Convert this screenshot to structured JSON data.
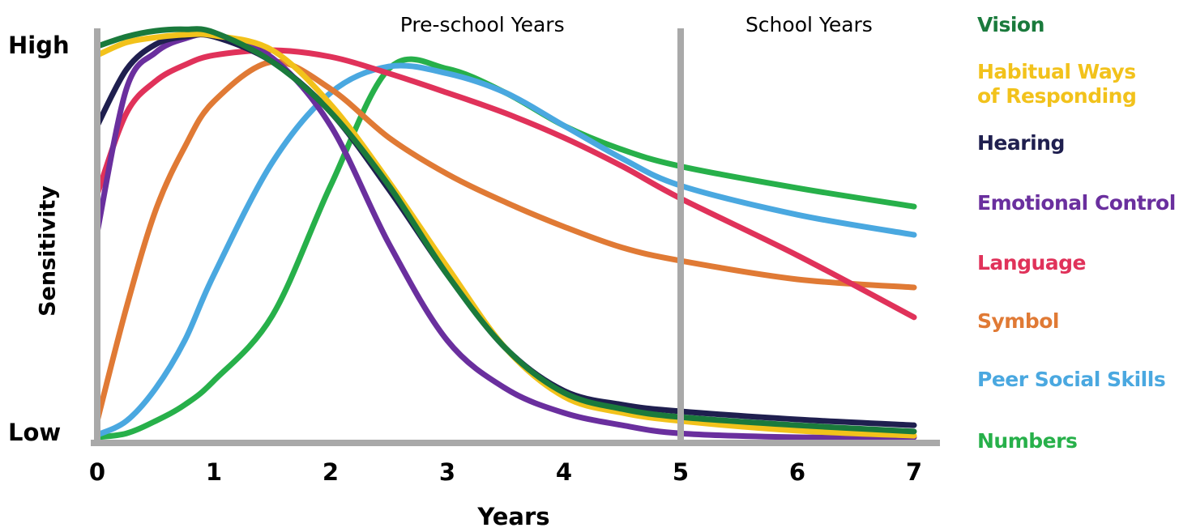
{
  "chart_data": {
    "type": "line",
    "ylabel": "Sensitivity",
    "xlabel": "Years",
    "annotations": [
      {
        "text": "Pre-school Years",
        "x": 3.3
      },
      {
        "text": "School Years",
        "x": 6.1
      }
    ],
    "divider_x": 5,
    "x": [
      0,
      0.25,
      0.5,
      0.75,
      1,
      1.5,
      2,
      2.5,
      3,
      3.5,
      4,
      4.5,
      5,
      6,
      7
    ],
    "xlim": [
      0,
      7
    ],
    "xticks": [
      0,
      1,
      2,
      3,
      4,
      5,
      6,
      7
    ],
    "ylim": [
      0,
      108
    ],
    "yticks": [
      {
        "value": 0,
        "label": "Low"
      },
      {
        "value": 100,
        "label": "High"
      }
    ],
    "grid": false,
    "series": [
      {
        "name": "Vision",
        "color": "#1a7a3c",
        "values": [
          101,
          103.5,
          105,
          105.4,
          104.6,
          97,
          84,
          65,
          42,
          23,
          11.5,
          7.3,
          5.2,
          3.1,
          1.5
        ]
      },
      {
        "name": "Habitual Ways of Responding",
        "color": "#f2c21b",
        "values": [
          98.7,
          102,
          103.3,
          104,
          103.8,
          100,
          86,
          66,
          44,
          23,
          10.5,
          6.3,
          4.2,
          1.7,
          0.4
        ]
      },
      {
        "name": "Hearing",
        "color": "#1f1f4f",
        "values": [
          80.5,
          95,
          101.5,
          103.5,
          103.5,
          97,
          84,
          64,
          42,
          23,
          12,
          8.4,
          6.7,
          4.6,
          3.1
        ]
      },
      {
        "name": "Emotional Control",
        "color": "#6a2f9e",
        "values": [
          53,
          90,
          99.4,
          103,
          103.8,
          98,
          80.5,
          50,
          25,
          12.6,
          6.3,
          3.1,
          1,
          0,
          0
        ]
      },
      {
        "name": "Language",
        "color": "#e0325a",
        "values": [
          62.8,
          83.7,
          92,
          96.2,
          98.7,
          100,
          98.3,
          94,
          89,
          83.7,
          77.4,
          70,
          61.7,
          47,
          31
        ]
      },
      {
        "name": "Symbol",
        "color": "#e07a35",
        "values": [
          4.2,
          33.5,
          58.6,
          75,
          86.8,
          97,
          90,
          77.4,
          68,
          60.7,
          54.4,
          49,
          45.6,
          40.8,
          38.7
        ]
      },
      {
        "name": "Peer Social Skills",
        "color": "#4aa8e0",
        "values": [
          0.6,
          4.2,
          12.6,
          25,
          42,
          71,
          89,
          95.8,
          94,
          89,
          80.5,
          72,
          65,
          57.5,
          52.3
        ]
      },
      {
        "name": "Numbers",
        "color": "#27b04a",
        "values": [
          0,
          1,
          4.2,
          8.4,
          14.6,
          31.4,
          65,
          95.2,
          95.2,
          89,
          80.5,
          74.3,
          70,
          64.4,
          59.6
        ]
      }
    ]
  }
}
